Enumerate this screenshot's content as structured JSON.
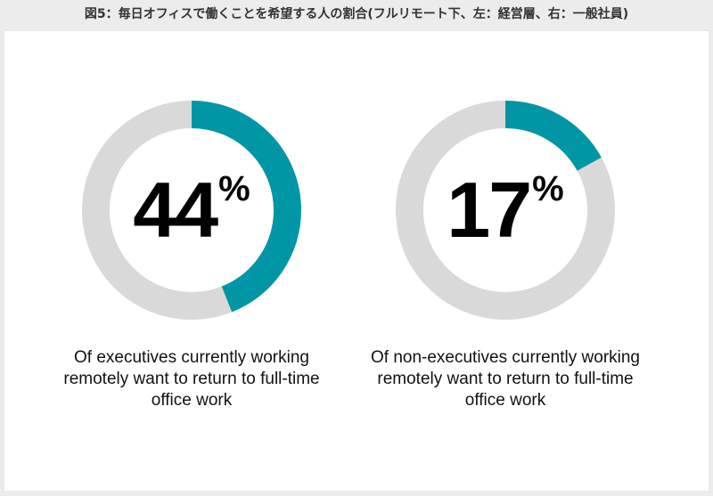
{
  "title": "図5：毎日オフィスで働くことを希望する人の割合(フルリモート下、左：経営層、右：一般社員)",
  "colors": {
    "accent": "#0096a5",
    "track": "#d9d9d9"
  },
  "chart_data": [
    {
      "type": "pie",
      "variant": "donut",
      "value": 44,
      "value_label": "44",
      "unit": "%",
      "caption": "Of executives currently working remotely want to return to full-time office work"
    },
    {
      "type": "pie",
      "variant": "donut",
      "value": 17,
      "value_label": "17",
      "unit": "%",
      "caption": "Of non-executives currently working remotely want to return to full-time office work"
    }
  ]
}
